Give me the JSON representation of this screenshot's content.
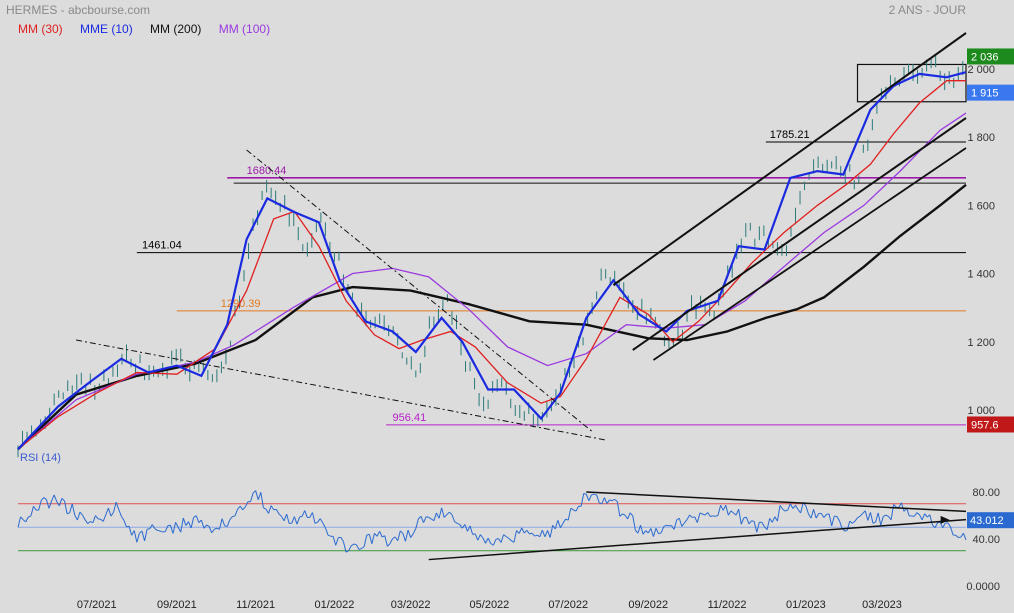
{
  "header": {
    "title": "HERMES - abcbourse.com",
    "period": "2 ANS - JOUR"
  },
  "legend": [
    {
      "label": "MM (30)",
      "color": "#e02020"
    },
    {
      "label": "MME (10)",
      "color": "#1a2ae0"
    },
    {
      "label": "MM (200)",
      "color": "#111111"
    },
    {
      "label": "MM (100)",
      "color": "#9a3ae0"
    }
  ],
  "chart_data": [
    {
      "type": "line",
      "name": "price",
      "ylim": [
        880,
        2110
      ],
      "xlim": [
        "2021-05-01",
        "2023-05-05"
      ],
      "x_ticks": [
        "07/2021",
        "09/2021",
        "11/2021",
        "01/2022",
        "03/2022",
        "05/2022",
        "07/2022",
        "09/2022",
        "11/2022",
        "01/2023",
        "03/2023"
      ],
      "y_ticks": [
        "1 000",
        "1 200",
        "1 400",
        "1 600",
        "1 800",
        "2 000"
      ],
      "series": [
        {
          "name": "MM (30)",
          "color": "#e02020",
          "points": [
            [
              "2021-05-01",
              885
            ],
            [
              "2021-06-01",
              980
            ],
            [
              "2021-07-01",
              1050
            ],
            [
              "2021-08-01",
              1110
            ],
            [
              "2021-09-01",
              1105
            ],
            [
              "2021-10-01",
              1180
            ],
            [
              "2021-10-25",
              1350
            ],
            [
              "2021-11-15",
              1560
            ],
            [
              "2021-12-01",
              1582
            ],
            [
              "2021-12-20",
              1480
            ],
            [
              "2022-01-10",
              1320
            ],
            [
              "2022-02-01",
              1220
            ],
            [
              "2022-02-20",
              1180
            ],
            [
              "2022-03-10",
              1205
            ],
            [
              "2022-04-01",
              1230
            ],
            [
              "2022-04-20",
              1185
            ],
            [
              "2022-05-15",
              1080
            ],
            [
              "2022-06-10",
              1020
            ],
            [
              "2022-06-25",
              1040
            ],
            [
              "2022-07-15",
              1150
            ],
            [
              "2022-08-10",
              1330
            ],
            [
              "2022-09-01",
              1280
            ],
            [
              "2022-09-20",
              1200
            ],
            [
              "2022-10-10",
              1260
            ],
            [
              "2022-10-30",
              1340
            ],
            [
              "2022-11-20",
              1430
            ],
            [
              "2022-12-15",
              1520
            ],
            [
              "2023-01-10",
              1600
            ],
            [
              "2023-02-01",
              1660
            ],
            [
              "2023-02-20",
              1720
            ],
            [
              "2023-03-10",
              1810
            ],
            [
              "2023-03-30",
              1900
            ],
            [
              "2023-04-20",
              1965
            ],
            [
              "2023-05-05",
              1965
            ]
          ]
        },
        {
          "name": "MME (10)",
          "color": "#1a2ae0",
          "points": [
            [
              "2021-05-01",
              885
            ],
            [
              "2021-06-01",
              1010
            ],
            [
              "2021-06-25",
              1080
            ],
            [
              "2021-07-20",
              1150
            ],
            [
              "2021-08-10",
              1110
            ],
            [
              "2021-09-01",
              1130
            ],
            [
              "2021-09-20",
              1100
            ],
            [
              "2021-10-10",
              1250
            ],
            [
              "2021-10-25",
              1500
            ],
            [
              "2021-11-10",
              1620
            ],
            [
              "2021-12-01",
              1580
            ],
            [
              "2021-12-20",
              1550
            ],
            [
              "2022-01-05",
              1380
            ],
            [
              "2022-01-25",
              1260
            ],
            [
              "2022-02-15",
              1230
            ],
            [
              "2022-03-05",
              1170
            ],
            [
              "2022-03-25",
              1270
            ],
            [
              "2022-04-10",
              1200
            ],
            [
              "2022-04-30",
              1060
            ],
            [
              "2022-05-20",
              1060
            ],
            [
              "2022-06-10",
              975
            ],
            [
              "2022-06-25",
              1050
            ],
            [
              "2022-07-15",
              1270
            ],
            [
              "2022-08-05",
              1380
            ],
            [
              "2022-08-25",
              1280
            ],
            [
              "2022-09-15",
              1230
            ],
            [
              "2022-10-01",
              1290
            ],
            [
              "2022-10-25",
              1320
            ],
            [
              "2022-11-10",
              1480
            ],
            [
              "2022-11-30",
              1470
            ],
            [
              "2022-12-20",
              1680
            ],
            [
              "2023-01-10",
              1700
            ],
            [
              "2023-01-30",
              1690
            ],
            [
              "2023-02-20",
              1880
            ],
            [
              "2023-03-10",
              1950
            ],
            [
              "2023-03-30",
              1985
            ],
            [
              "2023-04-20",
              1975
            ],
            [
              "2023-05-05",
              1990
            ]
          ]
        },
        {
          "name": "MM (100)",
          "color": "#9a3ae0",
          "points": [
            [
              "2021-05-01",
              885
            ],
            [
              "2021-06-15",
              1030
            ],
            [
              "2021-08-01",
              1105
            ],
            [
              "2021-09-15",
              1140
            ],
            [
              "2021-10-15",
              1190
            ],
            [
              "2021-11-30",
              1300
            ],
            [
              "2022-01-15",
              1400
            ],
            [
              "2022-02-15",
              1415
            ],
            [
              "2022-03-15",
              1390
            ],
            [
              "2022-04-15",
              1295
            ],
            [
              "2022-05-15",
              1185
            ],
            [
              "2022-06-15",
              1130
            ],
            [
              "2022-07-15",
              1165
            ],
            [
              "2022-08-15",
              1250
            ],
            [
              "2022-09-15",
              1240
            ],
            [
              "2022-10-15",
              1250
            ],
            [
              "2022-11-15",
              1320
            ],
            [
              "2022-12-15",
              1420
            ],
            [
              "2023-01-15",
              1520
            ],
            [
              "2023-02-15",
              1600
            ],
            [
              "2023-03-15",
              1700
            ],
            [
              "2023-04-15",
              1820
            ],
            [
              "2023-05-05",
              1870
            ]
          ]
        },
        {
          "name": "MM (200)",
          "color": "#111111",
          "points": [
            [
              "2021-05-01",
              885
            ],
            [
              "2021-06-15",
              1045
            ],
            [
              "2021-08-01",
              1100
            ],
            [
              "2021-09-15",
              1135
            ],
            [
              "2021-11-01",
              1205
            ],
            [
              "2021-12-15",
              1330
            ],
            [
              "2022-01-15",
              1360
            ],
            [
              "2022-03-01",
              1350
            ],
            [
              "2022-04-15",
              1310
            ],
            [
              "2022-06-01",
              1260
            ],
            [
              "2022-07-15",
              1250
            ],
            [
              "2022-09-01",
              1210
            ],
            [
              "2022-10-01",
              1205
            ],
            [
              "2022-11-01",
              1230
            ],
            [
              "2022-12-01",
              1270
            ],
            [
              "2022-12-25",
              1295
            ],
            [
              "2023-01-15",
              1330
            ],
            [
              "2023-02-15",
              1420
            ],
            [
              "2023-03-15",
              1510
            ],
            [
              "2023-04-15",
              1600
            ],
            [
              "2023-05-05",
              1660
            ]
          ]
        }
      ],
      "close_series": [
        [
          "2021-05-01",
          890
        ],
        [
          "2021-05-15",
          950
        ],
        [
          "2021-06-01",
          1030
        ],
        [
          "2021-06-20",
          1080
        ],
        [
          "2021-07-01",
          1060
        ],
        [
          "2021-07-20",
          1155
        ],
        [
          "2021-08-05",
          1120
        ],
        [
          "2021-08-20",
          1105
        ],
        [
          "2021-09-01",
          1150
        ],
        [
          "2021-09-15",
          1110
        ],
        [
          "2021-09-30",
          1080
        ],
        [
          "2021-10-10",
          1170
        ],
        [
          "2021-10-20",
          1330
        ],
        [
          "2021-10-30",
          1520
        ],
        [
          "2021-11-08",
          1665
        ],
        [
          "2021-11-20",
          1610
        ],
        [
          "2021-12-01",
          1570
        ],
        [
          "2021-12-10",
          1460
        ],
        [
          "2021-12-20",
          1560
        ],
        [
          "2022-01-05",
          1420
        ],
        [
          "2022-01-20",
          1280
        ],
        [
          "2022-02-05",
          1250
        ],
        [
          "2022-02-20",
          1200
        ],
        [
          "2022-03-05",
          1100
        ],
        [
          "2022-03-15",
          1230
        ],
        [
          "2022-03-30",
          1320
        ],
        [
          "2022-04-10",
          1180
        ],
        [
          "2022-04-25",
          1020
        ],
        [
          "2022-05-10",
          1080
        ],
        [
          "2022-05-25",
          1000
        ],
        [
          "2022-06-10",
          960
        ],
        [
          "2022-06-25",
          1080
        ],
        [
          "2022-07-10",
          1180
        ],
        [
          "2022-07-25",
          1380
        ],
        [
          "2022-08-05",
          1400
        ],
        [
          "2022-08-20",
          1300
        ],
        [
          "2022-09-05",
          1260
        ],
        [
          "2022-09-20",
          1180
        ],
        [
          "2022-10-05",
          1310
        ],
        [
          "2022-10-20",
          1270
        ],
        [
          "2022-11-01",
          1380
        ],
        [
          "2022-11-15",
          1520
        ],
        [
          "2022-12-01",
          1500
        ],
        [
          "2022-12-15",
          1440
        ],
        [
          "2022-12-30",
          1680
        ],
        [
          "2023-01-15",
          1720
        ],
        [
          "2023-01-30",
          1700
        ],
        [
          "2023-02-10",
          1680
        ],
        [
          "2023-02-25",
          1900
        ],
        [
          "2023-03-10",
          1960
        ],
        [
          "2023-03-25",
          1990
        ],
        [
          "2023-04-10",
          2010
        ],
        [
          "2023-04-25",
          1960
        ],
        [
          "2023-05-05",
          2036
        ]
      ],
      "horizontal_lines": [
        {
          "label": "1680.44",
          "value": 1680.44,
          "color": "#9b1aa8"
        },
        {
          "label": "1785.21",
          "value": 1785.21,
          "color": "#000000"
        },
        {
          "label": "1461.04",
          "value": 1461.04,
          "color": "#000000"
        },
        {
          "label": "1290.39",
          "value": 1290.39,
          "color": "#e07a20"
        },
        {
          "label": "956.41",
          "value": 956.41,
          "color": "#b820c8"
        }
      ],
      "badges": [
        {
          "label": "2 036",
          "color": "#1c8a1c"
        },
        {
          "label": "1 915",
          "color": "#3a78f0"
        },
        {
          "label": "957.6",
          "color": "#c01818"
        }
      ]
    },
    {
      "type": "line",
      "name": "RSI",
      "title": "RSI (14)",
      "ylim": [
        0,
        100
      ],
      "y_ticks": [
        "80.00",
        "40.00",
        "0.0000"
      ],
      "reference_lines": [
        {
          "value": 70,
          "color": "#e05050"
        },
        {
          "value": 50,
          "color": "#8aa8e8"
        },
        {
          "value": 30,
          "color": "#3a9a3a"
        }
      ],
      "series": [
        {
          "name": "RSI (14)",
          "color": "#2a6ad0",
          "points": [
            [
              "2021-05-01",
              50
            ],
            [
              "2021-05-15",
              70
            ],
            [
              "2021-06-01",
              72
            ],
            [
              "2021-06-15",
              62
            ],
            [
              "2021-07-01",
              55
            ],
            [
              "2021-07-15",
              68
            ],
            [
              "2021-08-01",
              38
            ],
            [
              "2021-08-15",
              52
            ],
            [
              "2021-09-01",
              50
            ],
            [
              "2021-09-15",
              56
            ],
            [
              "2021-10-01",
              48
            ],
            [
              "2021-10-15",
              60
            ],
            [
              "2021-11-01",
              79
            ],
            [
              "2021-11-15",
              62
            ],
            [
              "2021-12-01",
              56
            ],
            [
              "2021-12-15",
              60
            ],
            [
              "2022-01-01",
              40
            ],
            [
              "2022-01-15",
              30
            ],
            [
              "2022-02-01",
              42
            ],
            [
              "2022-02-15",
              38
            ],
            [
              "2022-03-01",
              45
            ],
            [
              "2022-03-15",
              60
            ],
            [
              "2022-04-01",
              62
            ],
            [
              "2022-04-15",
              50
            ],
            [
              "2022-05-01",
              35
            ],
            [
              "2022-05-15",
              40
            ],
            [
              "2022-06-01",
              48
            ],
            [
              "2022-06-15",
              45
            ],
            [
              "2022-07-01",
              58
            ],
            [
              "2022-07-15",
              76
            ],
            [
              "2022-08-01",
              72
            ],
            [
              "2022-08-15",
              60
            ],
            [
              "2022-09-01",
              42
            ],
            [
              "2022-09-15",
              50
            ],
            [
              "2022-10-01",
              55
            ],
            [
              "2022-10-15",
              62
            ],
            [
              "2022-11-01",
              66
            ],
            [
              "2022-11-15",
              56
            ],
            [
              "2022-12-01",
              48
            ],
            [
              "2022-12-15",
              68
            ],
            [
              "2023-01-01",
              66
            ],
            [
              "2023-01-15",
              58
            ],
            [
              "2023-02-01",
              52
            ],
            [
              "2023-02-15",
              62
            ],
            [
              "2023-03-01",
              56
            ],
            [
              "2023-03-15",
              68
            ],
            [
              "2023-04-01",
              60
            ],
            [
              "2023-04-15",
              52
            ],
            [
              "2023-05-05",
              43.012
            ]
          ]
        }
      ],
      "badge": {
        "label": "43.012",
        "color": "#2a6ad0"
      }
    }
  ]
}
